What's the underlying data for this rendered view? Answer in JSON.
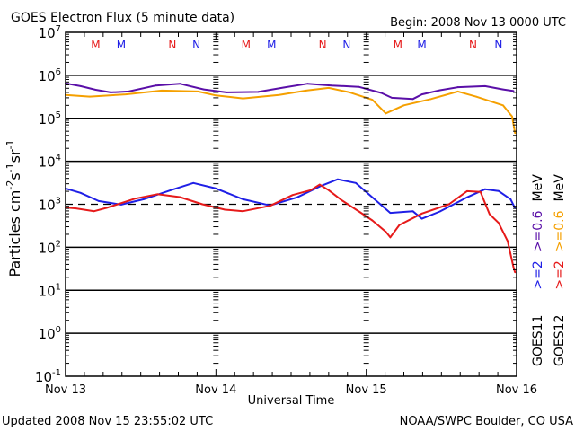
{
  "chart_data": {
    "type": "line",
    "title": "GOES Electron Flux (5 minute data)",
    "begin_label": "Begin: 2008 Nov 13 0000 UTC",
    "xlabel": "Universal Time",
    "ylabel": "Particles cm",
    "ylabel_units": [
      {
        "base": "Particles cm",
        "sup": "-2"
      },
      {
        "base": "s",
        "sup": "-1"
      },
      {
        "base": "sr",
        "sup": "-1"
      }
    ],
    "yscale": "log",
    "ylim": [
      0.1,
      10000000
    ],
    "xlim_days": [
      0,
      3
    ],
    "x_unit": "days since 2008 Nov 13 0000 UTC",
    "x_tick_labels": [
      {
        "day": 0,
        "label": "Nov 13"
      },
      {
        "day": 1,
        "label": "Nov 14"
      },
      {
        "day": 2,
        "label": "Nov 15"
      },
      {
        "day": 3,
        "label": "Nov 16"
      }
    ],
    "y_tick_labels": [
      {
        "exp": 7,
        "base": "10",
        "sup": "7"
      },
      {
        "exp": 6,
        "base": "10",
        "sup": "6"
      },
      {
        "exp": 5,
        "base": "10",
        "sup": "5"
      },
      {
        "exp": 4,
        "base": "10",
        "sup": "4"
      },
      {
        "exp": 3,
        "base": "10",
        "sup": "3"
      },
      {
        "exp": 2,
        "base": "10",
        "sup": "2"
      },
      {
        "exp": 1,
        "base": "10",
        "sup": "1"
      },
      {
        "exp": 0,
        "base": "10",
        "sup": "0"
      },
      {
        "exp": -1,
        "base": "10",
        "sup": "-1"
      }
    ],
    "grid_solid_exponents": [
      6,
      5,
      4,
      2,
      1,
      0
    ],
    "threshold": {
      "value": 1000,
      "style": "dashed"
    },
    "legend": {
      "placement": "right",
      "groups": [
        {
          "satellite": "GOES11",
          "items": [
            {
              "text": ">=2",
              "color": "#1f1fe6"
            },
            {
              "text": ">=0.6",
              "color": "#5a0fa8"
            }
          ],
          "unit": "MeV"
        },
        {
          "satellite": "GOES12",
          "items": [
            {
              "text": ">=2",
              "color": "#e61a1a"
            },
            {
              "text": ">=0.6",
              "color": "#f5a000"
            }
          ],
          "unit": "MeV"
        }
      ]
    },
    "markers": [
      {
        "day": 0.2,
        "label": "M",
        "color": "#e61a1a"
      },
      {
        "day": 0.37,
        "label": "M",
        "color": "#1f1fe6"
      },
      {
        "day": 0.71,
        "label": "N",
        "color": "#e61a1a"
      },
      {
        "day": 0.87,
        "label": "N",
        "color": "#1f1fe6"
      },
      {
        "day": 1.2,
        "label": "M",
        "color": "#e61a1a"
      },
      {
        "day": 1.37,
        "label": "M",
        "color": "#1f1fe6"
      },
      {
        "day": 1.71,
        "label": "N",
        "color": "#e61a1a"
      },
      {
        "day": 1.87,
        "label": "N",
        "color": "#1f1fe6"
      },
      {
        "day": 2.21,
        "label": "M",
        "color": "#e61a1a"
      },
      {
        "day": 2.37,
        "label": "M",
        "color": "#1f1fe6"
      },
      {
        "day": 2.71,
        "label": "N",
        "color": "#e61a1a"
      },
      {
        "day": 2.88,
        "label": "N",
        "color": "#1f1fe6"
      }
    ],
    "series": [
      {
        "name": "GOES11 >=0.6 MeV",
        "color": "#5a0fa8",
        "x": [
          0.0,
          0.1,
          0.2,
          0.3,
          0.42,
          0.6,
          0.76,
          0.92,
          1.07,
          1.28,
          1.45,
          1.61,
          1.77,
          1.95,
          2.1,
          2.17,
          2.31,
          2.37,
          2.49,
          2.61,
          2.79,
          2.91,
          2.98
        ],
        "y": [
          650000,
          560000,
          460000,
          400000,
          420000,
          580000,
          640000,
          470000,
          400000,
          410000,
          520000,
          640000,
          580000,
          540000,
          390000,
          300000,
          280000,
          360000,
          450000,
          530000,
          560000,
          470000,
          430000
        ]
      },
      {
        "name": "GOES12 >=0.6 MeV",
        "color": "#f5a000",
        "x": [
          0.0,
          0.16,
          0.4,
          0.64,
          0.88,
          1.0,
          1.18,
          1.42,
          1.6,
          1.75,
          1.89,
          2.04,
          2.13,
          2.25,
          2.43,
          2.61,
          2.73,
          2.91,
          2.97,
          2.99
        ],
        "y": [
          350000,
          320000,
          360000,
          440000,
          420000,
          340000,
          290000,
          350000,
          440000,
          510000,
          400000,
          270000,
          130000,
          200000,
          280000,
          420000,
          320000,
          200000,
          110000,
          45000
        ]
      },
      {
        "name": "GOES11 >=2 MeV",
        "color": "#1f1fe6",
        "x": [
          0.0,
          0.1,
          0.22,
          0.37,
          0.52,
          0.7,
          0.85,
          1.0,
          1.18,
          1.36,
          1.54,
          1.69,
          1.81,
          1.93,
          2.04,
          2.16,
          2.31,
          2.37,
          2.49,
          2.67,
          2.79,
          2.88,
          2.96,
          2.99
        ],
        "y": [
          2330,
          1840,
          1190,
          980,
          1310,
          2130,
          3130,
          2330,
          1310,
          940,
          1450,
          2590,
          3800,
          3130,
          1450,
          630,
          690,
          460,
          680,
          1450,
          2240,
          2040,
          1310,
          810
        ]
      },
      {
        "name": "GOES12 >=2 MeV",
        "color": "#e61a1a",
        "x": [
          0.0,
          0.07,
          0.19,
          0.28,
          0.46,
          0.61,
          0.76,
          0.91,
          1.06,
          1.18,
          1.36,
          1.51,
          1.63,
          1.69,
          1.75,
          1.84,
          1.96,
          2.04,
          2.13,
          2.16,
          2.22,
          2.37,
          2.55,
          2.67,
          2.76,
          2.82,
          2.88,
          2.94,
          2.98,
          2.99
        ],
        "y": [
          840,
          800,
          690,
          840,
          1350,
          1710,
          1470,
          1000,
          750,
          690,
          920,
          1640,
          2130,
          2870,
          2130,
          1220,
          650,
          420,
          230,
          170,
          330,
          610,
          1000,
          2020,
          1930,
          590,
          370,
          140,
          33,
          26
        ]
      }
    ]
  },
  "footer": {
    "updated": "Updated 2008 Nov 15 23:55:02 UTC",
    "credit": "NOAA/SWPC Boulder, CO USA"
  }
}
